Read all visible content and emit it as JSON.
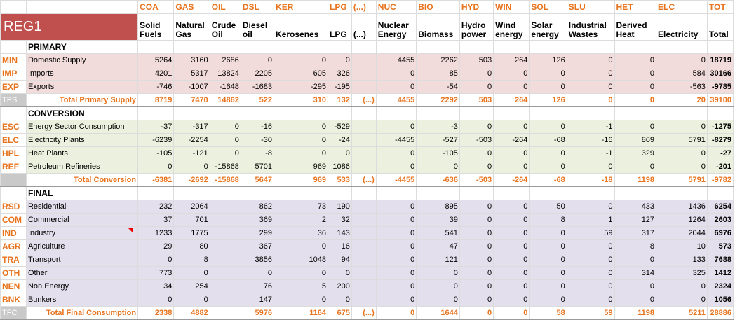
{
  "region": "REG1",
  "codes": [
    "COA",
    "GAS",
    "OIL",
    "DSL",
    "KER",
    "LPG",
    "(...)",
    "NUC",
    "BIO",
    "HYD",
    "WIN",
    "SOL",
    "SLU",
    "HET",
    "ELC",
    "TOT"
  ],
  "names": [
    "Solid Fuels",
    "Natural Gas",
    "Crude Oil",
    "Diesel oil",
    "Kerosenes",
    "LPG",
    "(...)",
    "Nuclear Energy",
    "Biomass",
    "Hydro power",
    "Wind energy",
    "Solar energy",
    "Industrial Wastes",
    "Derived Heat",
    "Electricity",
    "Total"
  ],
  "sections": {
    "primary": "PRIMARY",
    "conversion": "CONVERSION",
    "final": "FINAL"
  },
  "primary_rows": [
    {
      "code": "MIN",
      "label": "Domestic Supply",
      "values": [
        "5264",
        "3160",
        "2686",
        "0",
        "0",
        "0",
        "",
        "4455",
        "2262",
        "503",
        "264",
        "126",
        "0",
        "0",
        "0",
        "18719"
      ]
    },
    {
      "code": "IMP",
      "label": "Imports",
      "values": [
        "4201",
        "5317",
        "13824",
        "2205",
        "605",
        "326",
        "",
        "0",
        "85",
        "0",
        "0",
        "0",
        "0",
        "0",
        "584",
        "30166"
      ]
    },
    {
      "code": "EXP",
      "label": "Exports",
      "values": [
        "-746",
        "-1007",
        "-1648",
        "-1683",
        "-295",
        "-195",
        "",
        "0",
        "-54",
        "0",
        "0",
        "0",
        "0",
        "0",
        "-563",
        "-9785"
      ]
    }
  ],
  "total_primary": {
    "code": "TPS",
    "label": "Total Primary Supply",
    "values": [
      "8719",
      "7470",
      "14862",
      "522",
      "310",
      "132",
      "(...)",
      "4455",
      "2292",
      "503",
      "264",
      "126",
      "0",
      "0",
      "20",
      "39100"
    ]
  },
  "conversion_rows": [
    {
      "code": "ESC",
      "label": "Energy Sector Consumption",
      "values": [
        "-37",
        "-317",
        "0",
        "-16",
        "0",
        "-529",
        "",
        "0",
        "-3",
        "0",
        "0",
        "0",
        "-1",
        "0",
        "0",
        "-1275"
      ]
    },
    {
      "code": "ELC",
      "label": "Electricity Plants",
      "values": [
        "-6239",
        "-2254",
        "0",
        "-30",
        "0",
        "-24",
        "",
        "-4455",
        "-527",
        "-503",
        "-264",
        "-68",
        "-16",
        "869",
        "5791",
        "-8279"
      ]
    },
    {
      "code": "HPL",
      "label": "Heat Plants",
      "values": [
        "-105",
        "-121",
        "0",
        "-8",
        "0",
        "0",
        "",
        "0",
        "-105",
        "0",
        "0",
        "0",
        "-1",
        "329",
        "0",
        "-27"
      ]
    },
    {
      "code": "REF",
      "label": "Petroleum Refineries",
      "values": [
        "0",
        "0",
        "-15868",
        "5701",
        "969",
        "1086",
        "",
        "0",
        "0",
        "0",
        "0",
        "0",
        "0",
        "0",
        "0",
        "-201"
      ]
    }
  ],
  "total_conversion": {
    "code": "",
    "label": "Total Conversion",
    "values": [
      "-6381",
      "-2692",
      "-15868",
      "5647",
      "969",
      "533",
      "(...)",
      "-4455",
      "-636",
      "-503",
      "-264",
      "-68",
      "-18",
      "1198",
      "5791",
      "-9782"
    ]
  },
  "final_rows": [
    {
      "code": "RSD",
      "label": "Residential",
      "values": [
        "232",
        "2064",
        "",
        "862",
        "73",
        "190",
        "",
        "0",
        "895",
        "0",
        "0",
        "50",
        "0",
        "433",
        "1436",
        "6254"
      ]
    },
    {
      "code": "COM",
      "label": "Commercial",
      "values": [
        "37",
        "701",
        "",
        "369",
        "2",
        "32",
        "",
        "0",
        "39",
        "0",
        "0",
        "8",
        "1",
        "127",
        "1264",
        "2603"
      ]
    },
    {
      "code": "IND",
      "label": "Industry",
      "values": [
        "1233",
        "1775",
        "",
        "299",
        "36",
        "143",
        "",
        "0",
        "541",
        "0",
        "0",
        "0",
        "59",
        "317",
        "2044",
        "6976"
      ]
    },
    {
      "code": "AGR",
      "label": "Agriculture",
      "values": [
        "29",
        "80",
        "",
        "367",
        "0",
        "16",
        "",
        "0",
        "47",
        "0",
        "0",
        "0",
        "0",
        "8",
        "10",
        "573"
      ]
    },
    {
      "code": "TRA",
      "label": "Transport",
      "values": [
        "0",
        "8",
        "",
        "3856",
        "1048",
        "94",
        "",
        "0",
        "121",
        "0",
        "0",
        "0",
        "0",
        "0",
        "133",
        "7688"
      ]
    },
    {
      "code": "OTH",
      "label": "Other",
      "values": [
        "773",
        "0",
        "",
        "0",
        "0",
        "0",
        "",
        "0",
        "0",
        "0",
        "0",
        "0",
        "0",
        "314",
        "325",
        "1412"
      ]
    },
    {
      "code": "NEN",
      "label": "Non Energy",
      "values": [
        "34",
        "254",
        "",
        "76",
        "5",
        "200",
        "",
        "0",
        "0",
        "0",
        "0",
        "0",
        "0",
        "0",
        "0",
        "2324"
      ]
    },
    {
      "code": "BNK",
      "label": "Bunkers",
      "values": [
        "0",
        "0",
        "",
        "147",
        "0",
        "0",
        "",
        "0",
        "0",
        "0",
        "0",
        "0",
        "0",
        "0",
        "0",
        "1056"
      ]
    }
  ],
  "total_final": {
    "code": "TFC",
    "label": "Total Final Consumption",
    "values": [
      "2338",
      "4882",
      "",
      "5976",
      "1164",
      "675",
      "(...)",
      "0",
      "1644",
      "0",
      "0",
      "58",
      "59",
      "1198",
      "5211",
      "28886"
    ]
  },
  "colors": {
    "accent": "#e8731d",
    "region_bg": "#c0504d",
    "primary_bg": "#f2dcdb",
    "conversion_bg": "#ebf1de",
    "final_bg": "#e4dfec"
  }
}
